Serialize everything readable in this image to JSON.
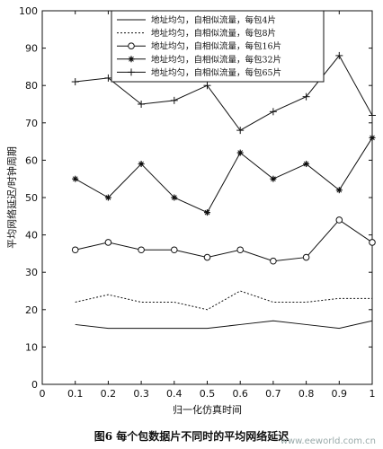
{
  "caption": "图6  每个包数据片不同时的平均网络延迟",
  "watermark": "www.eeworld.com.cn",
  "chart_data": {
    "type": "line",
    "xlabel": "归一化仿真时间",
    "ylabel": "平均网络延迟/时钟周期",
    "xlim": [
      0,
      1
    ],
    "ylim": [
      0,
      100
    ],
    "xticks": [
      "0",
      "0.1",
      "0.2",
      "0.3",
      "0.4",
      "0.5",
      "0.6",
      "0.7",
      "0.8",
      "0.9",
      "1"
    ],
    "yticks": [
      "0",
      "10",
      "20",
      "30",
      "40",
      "50",
      "60",
      "70",
      "80",
      "90",
      "100"
    ],
    "grid": false,
    "legend_position": "top-right",
    "x": [
      0.1,
      0.2,
      0.3,
      0.4,
      0.5,
      0.6,
      0.7,
      0.8,
      0.9,
      1.0
    ],
    "series": [
      {
        "name": "地址均匀，自相似流量，每包4片",
        "style": "solid",
        "marker": "none",
        "values": [
          16,
          15,
          15,
          15,
          15,
          16,
          17,
          16,
          15,
          17
        ]
      },
      {
        "name": "地址均匀，自相似流量，每包8片",
        "style": "dotted",
        "marker": "none",
        "values": [
          22,
          24,
          22,
          22,
          20,
          25,
          22,
          22,
          23,
          23
        ]
      },
      {
        "name": "地址均匀，自相似流量，每包16片",
        "style": "solid",
        "marker": "circle",
        "values": [
          36,
          38,
          36,
          36,
          34,
          36,
          33,
          34,
          44,
          38
        ]
      },
      {
        "name": "地址均匀，自相似流量，每包32片",
        "style": "solid",
        "marker": "star",
        "values": [
          55,
          50,
          59,
          50,
          46,
          62,
          55,
          59,
          52,
          66
        ]
      },
      {
        "name": "地址均匀，自相似流量，每包65片",
        "style": "solid",
        "marker": "plus",
        "values": [
          81,
          82,
          75,
          76,
          80,
          68,
          73,
          77,
          88,
          72
        ]
      }
    ]
  }
}
